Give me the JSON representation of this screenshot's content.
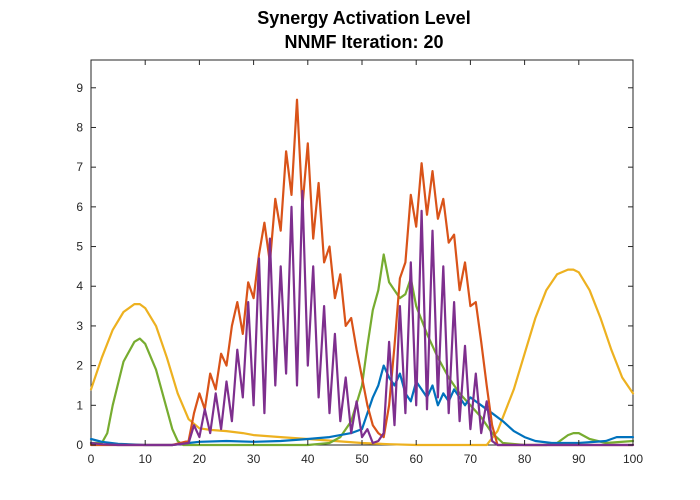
{
  "chart_data": {
    "type": "line",
    "title": [
      "Synergy Activation Level",
      "NNMF Iteration: 20"
    ],
    "xlabel": "",
    "ylabel": "",
    "xlim": [
      0,
      100
    ],
    "ylim": [
      0,
      9.7
    ],
    "x_ticks": [
      0,
      10,
      20,
      30,
      40,
      50,
      60,
      70,
      80,
      90,
      100
    ],
    "y_ticks": [
      0,
      1,
      2,
      3,
      4,
      5,
      6,
      7,
      8,
      9
    ],
    "grid": false,
    "legend": "none",
    "series": [
      {
        "color": "#EDB120",
        "x": [
          0,
          2,
          4,
          6,
          8,
          9,
          10,
          12,
          14,
          16,
          18,
          20,
          22,
          25,
          28,
          30,
          35,
          40,
          45,
          50,
          55,
          60,
          65,
          70,
          73,
          75,
          78,
          80,
          82,
          84,
          86,
          88,
          89,
          90,
          92,
          94,
          96,
          98,
          100
        ],
        "y": [
          1.4,
          2.2,
          2.9,
          3.35,
          3.55,
          3.55,
          3.45,
          3.0,
          2.2,
          1.3,
          0.65,
          0.42,
          0.38,
          0.35,
          0.3,
          0.25,
          0.2,
          0.15,
          0.1,
          0.05,
          0.02,
          0.0,
          0.0,
          0.0,
          0.0,
          0.35,
          1.4,
          2.3,
          3.2,
          3.9,
          4.3,
          4.42,
          4.42,
          4.35,
          3.9,
          3.2,
          2.4,
          1.7,
          1.3
        ]
      },
      {
        "color": "#77AC30",
        "x": [
          0,
          2,
          3,
          4,
          6,
          8,
          9,
          10,
          12,
          14,
          15,
          16,
          17,
          20,
          30,
          40,
          44,
          46,
          48,
          50,
          51,
          52,
          53,
          54,
          55,
          56,
          57,
          58,
          59,
          60,
          62,
          64,
          66,
          68,
          70,
          72,
          74,
          76,
          80,
          84,
          86,
          88,
          89,
          90,
          92,
          95,
          100
        ],
        "y": [
          0.05,
          0.05,
          0.3,
          1.0,
          2.1,
          2.6,
          2.68,
          2.55,
          1.9,
          0.9,
          0.4,
          0.1,
          0.0,
          0.0,
          0.0,
          0.0,
          0.05,
          0.2,
          0.6,
          1.5,
          2.5,
          3.4,
          3.9,
          4.8,
          4.1,
          3.9,
          3.7,
          3.8,
          4.2,
          3.5,
          2.8,
          2.2,
          1.7,
          1.3,
          1.0,
          0.7,
          0.3,
          0.05,
          0.0,
          0.0,
          0.05,
          0.25,
          0.3,
          0.3,
          0.15,
          0.05,
          0.1
        ]
      },
      {
        "color": "#0072BD",
        "x": [
          0,
          2,
          5,
          10,
          15,
          18,
          20,
          25,
          30,
          35,
          40,
          44,
          46,
          48,
          50,
          51,
          52,
          53,
          54,
          55,
          56,
          57,
          58,
          59,
          60,
          61,
          62,
          63,
          64,
          65,
          66,
          67,
          68,
          69,
          70,
          72,
          74,
          76,
          78,
          80,
          82,
          85,
          90,
          95,
          97,
          100
        ],
        "y": [
          0.15,
          0.08,
          0.03,
          0.0,
          0.0,
          0.05,
          0.08,
          0.1,
          0.08,
          0.1,
          0.15,
          0.2,
          0.25,
          0.3,
          0.4,
          0.8,
          1.2,
          1.5,
          2.0,
          1.7,
          1.5,
          1.8,
          1.3,
          1.1,
          1.6,
          1.4,
          1.2,
          1.5,
          1.0,
          1.3,
          1.1,
          1.4,
          1.2,
          1.0,
          1.2,
          1.0,
          0.8,
          0.6,
          0.35,
          0.2,
          0.1,
          0.05,
          0.05,
          0.1,
          0.2,
          0.2
        ]
      },
      {
        "color": "#D95319",
        "x": [
          0,
          2,
          5,
          10,
          15,
          18,
          19,
          20,
          21,
          22,
          23,
          24,
          25,
          26,
          27,
          28,
          29,
          30,
          31,
          32,
          33,
          34,
          35,
          36,
          37,
          38,
          39,
          40,
          41,
          42,
          43,
          44,
          45,
          46,
          47,
          48,
          49,
          50,
          51,
          52,
          53,
          54,
          55,
          56,
          57,
          58,
          59,
          60,
          61,
          62,
          63,
          64,
          65,
          66,
          67,
          68,
          69,
          70,
          71,
          72,
          73,
          74,
          75,
          80,
          90,
          100
        ],
        "y": [
          0.0,
          0.0,
          0.0,
          0.0,
          0.0,
          0.1,
          0.8,
          1.3,
          0.9,
          1.8,
          1.4,
          2.3,
          2.0,
          3.0,
          3.6,
          2.8,
          4.1,
          3.7,
          4.8,
          5.6,
          4.6,
          6.2,
          5.4,
          7.4,
          6.3,
          8.7,
          6.0,
          7.6,
          5.2,
          6.6,
          4.6,
          5.0,
          3.7,
          4.3,
          3.0,
          3.2,
          2.4,
          1.7,
          1.0,
          0.5,
          0.3,
          0.2,
          1.0,
          2.5,
          4.2,
          4.6,
          6.3,
          5.5,
          7.1,
          5.8,
          6.9,
          5.7,
          6.2,
          5.1,
          5.3,
          3.9,
          4.6,
          3.5,
          3.6,
          2.6,
          1.5,
          0.5,
          0.0,
          0.0,
          0.0,
          0.0
        ]
      },
      {
        "color": "#7E2F8E",
        "x": [
          0,
          2,
          5,
          10,
          15,
          18,
          19,
          20,
          21,
          22,
          23,
          24,
          25,
          26,
          27,
          28,
          29,
          30,
          31,
          32,
          33,
          34,
          35,
          36,
          37,
          38,
          39,
          40,
          41,
          42,
          43,
          44,
          45,
          46,
          47,
          48,
          49,
          50,
          51,
          52,
          53,
          54,
          55,
          56,
          57,
          58,
          59,
          60,
          61,
          62,
          63,
          64,
          65,
          66,
          67,
          68,
          69,
          70,
          71,
          72,
          73,
          74,
          75,
          80,
          90,
          100
        ],
        "y": [
          0.05,
          0.02,
          0.0,
          0.0,
          0.0,
          0.05,
          0.5,
          0.2,
          0.9,
          0.3,
          1.3,
          0.4,
          1.6,
          0.6,
          2.4,
          1.2,
          3.6,
          1.0,
          4.7,
          0.8,
          5.2,
          1.5,
          4.5,
          1.8,
          6.0,
          1.5,
          6.4,
          2.0,
          4.5,
          1.2,
          3.5,
          0.8,
          2.8,
          0.6,
          1.7,
          0.3,
          1.1,
          0.2,
          0.4,
          0.05,
          0.1,
          0.3,
          2.6,
          0.5,
          3.5,
          0.8,
          4.6,
          1.0,
          5.9,
          0.9,
          5.4,
          1.2,
          4.5,
          0.8,
          3.6,
          0.6,
          2.5,
          0.4,
          1.8,
          0.3,
          1.1,
          0.1,
          0.0,
          0.0,
          0.0,
          0.0
        ]
      }
    ]
  }
}
